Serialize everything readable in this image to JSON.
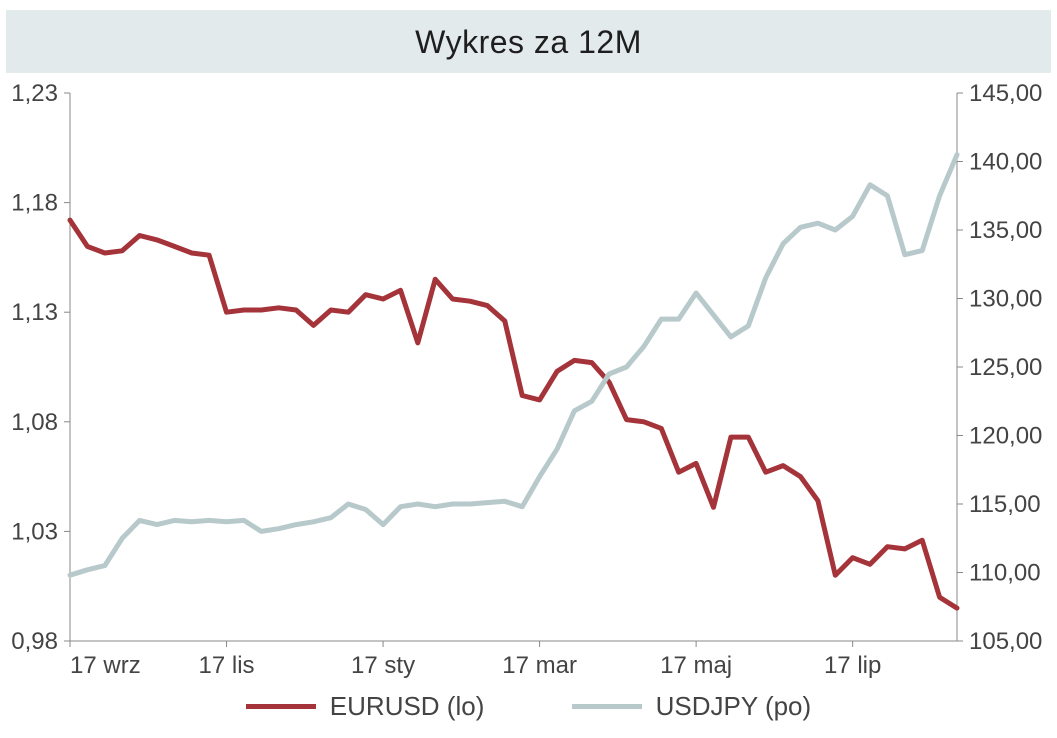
{
  "chart": {
    "type": "line",
    "title": "Wykres za 12M",
    "title_fontsize": 32,
    "title_background": "#e2eaec",
    "title_color": "#1e1e1e",
    "background_color": "#ffffff",
    "axis_label_fontsize": 24,
    "axis_label_color": "#444444",
    "border_color": "#888888",
    "line_width": 5,
    "legend": {
      "position": "bottom",
      "items": [
        {
          "label": "EURUSD (lo)",
          "color": "#a4343a"
        },
        {
          "label": "USDJPY (po)",
          "color": "#b7c9ca"
        }
      ]
    },
    "x_axis": {
      "categories": [
        "17 wrz",
        "17 lis",
        "17 sty",
        "17 mar",
        "17 maj",
        "17 lip"
      ],
      "tick_indices": [
        0,
        9,
        18,
        27,
        36,
        45
      ],
      "n_points": 52
    },
    "y_left": {
      "min": 0.98,
      "max": 1.23,
      "tick_step": 0.05,
      "ticks": [
        "0,98",
        "1,03",
        "1,08",
        "1,13",
        "1,18",
        "1,23"
      ]
    },
    "y_right": {
      "min": 105.0,
      "max": 145.0,
      "tick_step": 5.0,
      "ticks": [
        "105,00",
        "110,00",
        "115,00",
        "120,00",
        "125,00",
        "130,00",
        "135,00",
        "140,00",
        "145,00"
      ]
    },
    "series": [
      {
        "name": "EURUSD (lo)",
        "axis": "left",
        "color": "#a4343a",
        "values": [
          1.172,
          1.16,
          1.157,
          1.158,
          1.165,
          1.163,
          1.16,
          1.157,
          1.156,
          1.13,
          1.131,
          1.131,
          1.132,
          1.131,
          1.124,
          1.131,
          1.13,
          1.138,
          1.136,
          1.14,
          1.116,
          1.145,
          1.136,
          1.135,
          1.133,
          1.126,
          1.092,
          1.09,
          1.103,
          1.108,
          1.107,
          1.098,
          1.081,
          1.08,
          1.077,
          1.057,
          1.061,
          1.041,
          1.073,
          1.073,
          1.057,
          1.06,
          1.055,
          1.044,
          1.01,
          1.018,
          1.015,
          1.023,
          1.022,
          1.026,
          1.0,
          0.995
        ]
      },
      {
        "name": "USDJPY (po)",
        "axis": "right",
        "color": "#b7c9ca",
        "values": [
          109.8,
          110.2,
          110.5,
          112.5,
          113.8,
          113.5,
          113.8,
          113.7,
          113.8,
          113.7,
          113.8,
          113.0,
          113.2,
          113.5,
          113.7,
          114.0,
          115.0,
          114.6,
          113.5,
          114.8,
          115.0,
          114.8,
          115.0,
          115.0,
          115.1,
          115.2,
          114.8,
          117.0,
          119.0,
          121.8,
          122.5,
          124.5,
          125.0,
          126.5,
          128.5,
          128.5,
          130.4,
          128.8,
          127.2,
          128.0,
          131.5,
          134.0,
          135.2,
          135.5,
          135.0,
          136.0,
          138.3,
          137.5,
          133.2,
          133.5,
          137.5,
          140.5
        ]
      }
    ]
  }
}
